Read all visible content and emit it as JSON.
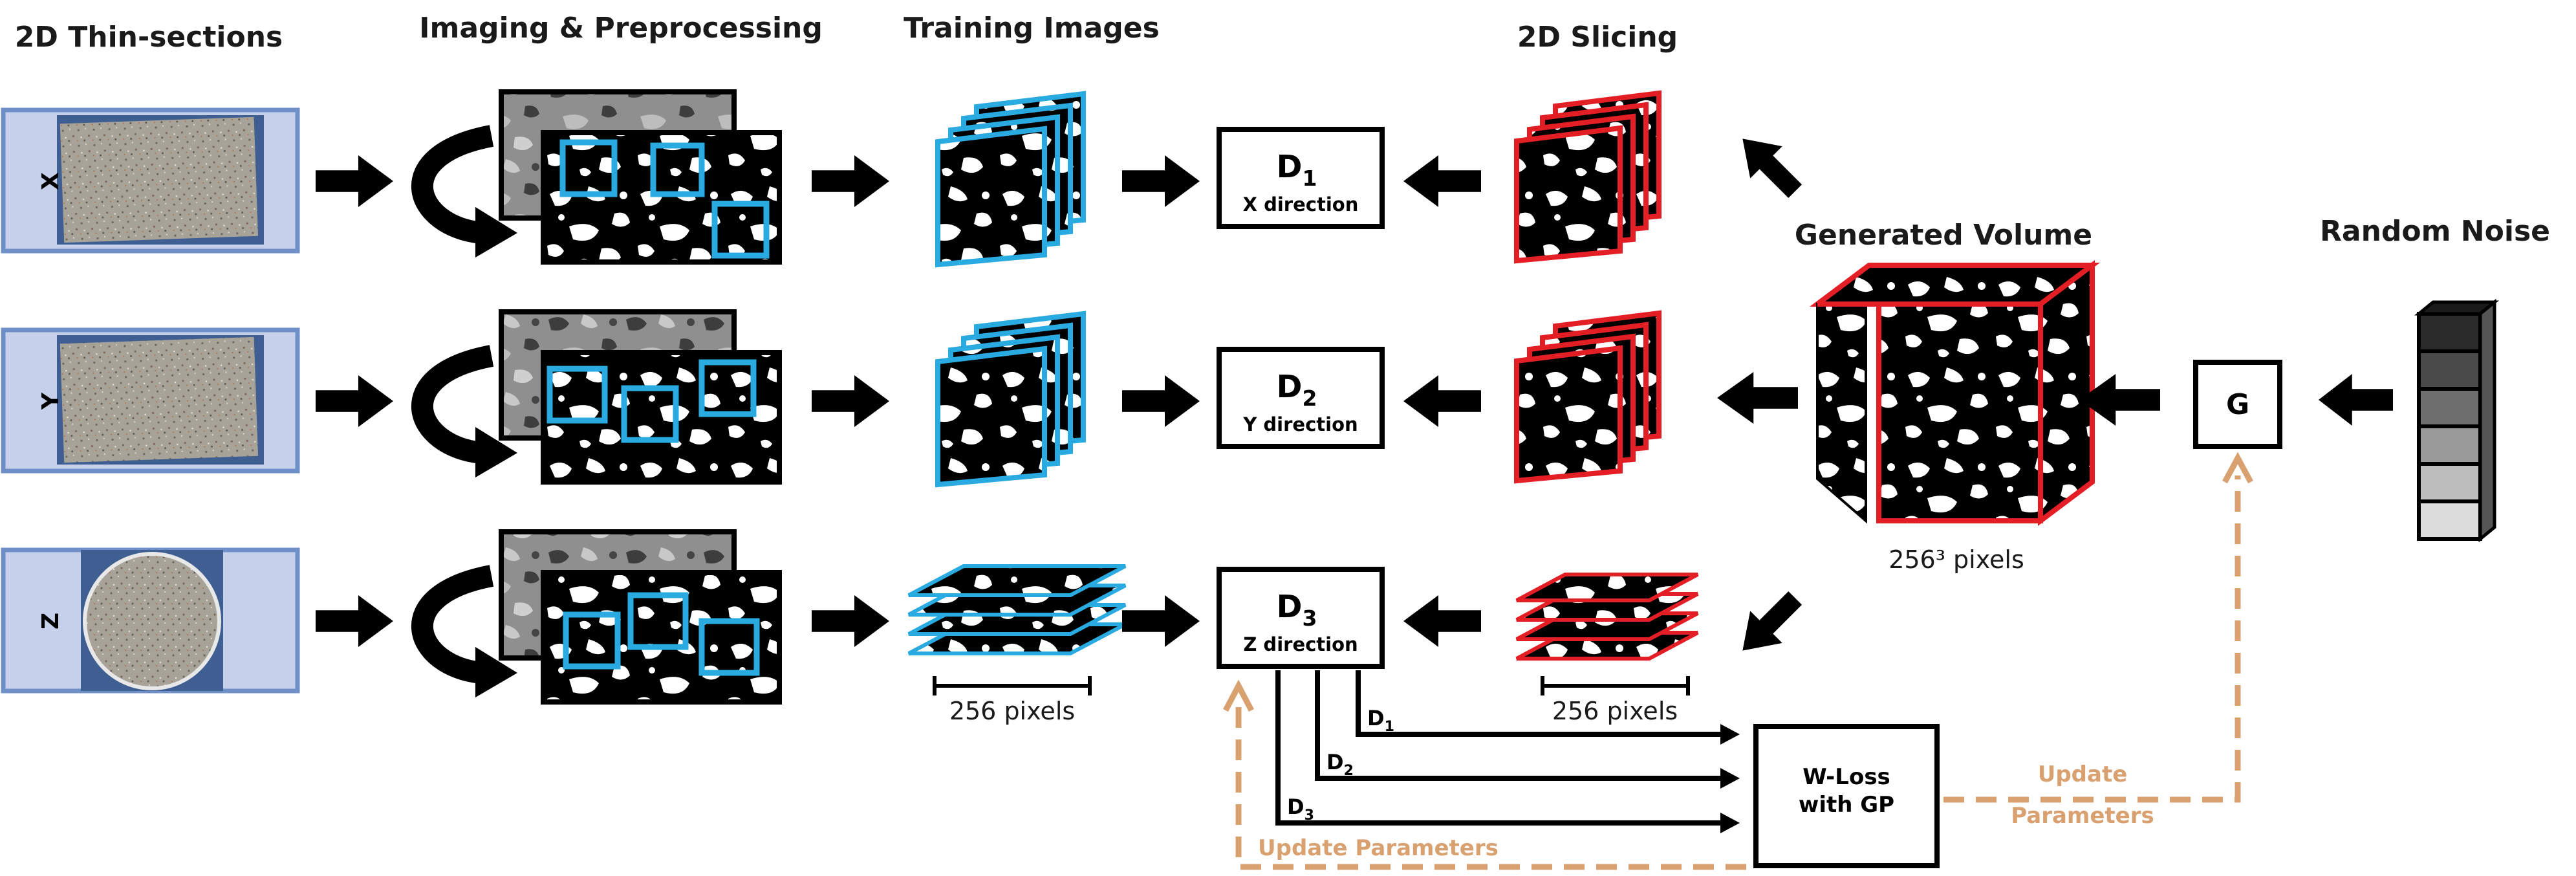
{
  "headers": {
    "thin_sections": "2D Thin-sections",
    "imaging": "Imaging & Preprocessing",
    "training": "Training Images",
    "slicing": "2D Slicing",
    "generated_volume": "Generated Volume",
    "random_noise": "Random Noise"
  },
  "rows": [
    {
      "axis": "X"
    },
    {
      "axis": "Y"
    },
    {
      "axis": "Z"
    }
  ],
  "discriminators": [
    {
      "name": "D",
      "sub": "1",
      "direction": "X direction"
    },
    {
      "name": "D",
      "sub": "2",
      "direction": "Y direction"
    },
    {
      "name": "D",
      "sub": "3",
      "direction": "Z direction"
    }
  ],
  "generator": "G",
  "loss": {
    "line1": "W-Loss",
    "line2": "with GP"
  },
  "scales": {
    "training": "256 pixels",
    "slices": "256 pixels",
    "volume": "256³ pixels"
  },
  "feed_labels": [
    {
      "name": "D",
      "sub": "1"
    },
    {
      "name": "D",
      "sub": "2"
    },
    {
      "name": "D",
      "sub": "3"
    }
  ],
  "update": {
    "bottom": "Update Parameters",
    "right_line1": "Update",
    "right_line2": "Parameters"
  },
  "colors": {
    "training_border": "#29aae1",
    "generated_border": "#e31e24",
    "update_arrow": "#d9a070",
    "thin_section_bg": "#c7d0ea",
    "thin_section_border": "#6f8fc9"
  },
  "noise_shades": [
    "#2a2a2a",
    "#4a4a4a",
    "#6e6e6e",
    "#9a9a9a",
    "#bdbdbd",
    "#dcdcdc"
  ]
}
